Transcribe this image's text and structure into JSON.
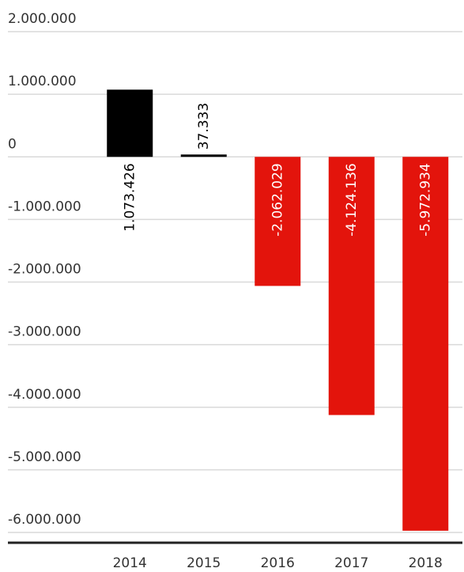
{
  "chart_data": {
    "type": "bar",
    "categories": [
      "2014",
      "2015",
      "2016",
      "2017",
      "2018"
    ],
    "values": [
      1073426,
      37333,
      -2062029,
      -4124136,
      -5972934
    ],
    "data_labels": [
      "1.073.426",
      "37.333",
      "-2.062.029",
      "-4.124.136",
      "-5.972.934"
    ],
    "y_ticks": [
      2000000,
      1000000,
      0,
      -1000000,
      -2000000,
      -3000000,
      -4000000,
      -5000000,
      -6000000
    ],
    "y_tick_labels": [
      "2.000.000",
      "1.000.000",
      "0",
      "-1.000.000",
      "-2.000.000",
      "-3.000.000",
      "-4.000.000",
      "-5.000.000",
      "-6.000.000"
    ],
    "ylim": [
      -6000000,
      2000000
    ],
    "grid": true,
    "colors": {
      "positive": "#000000",
      "negative": "#e3140c",
      "grid": "#d9d9d9",
      "axis": "#222222"
    },
    "title": "",
    "xlabel": "",
    "ylabel": ""
  }
}
